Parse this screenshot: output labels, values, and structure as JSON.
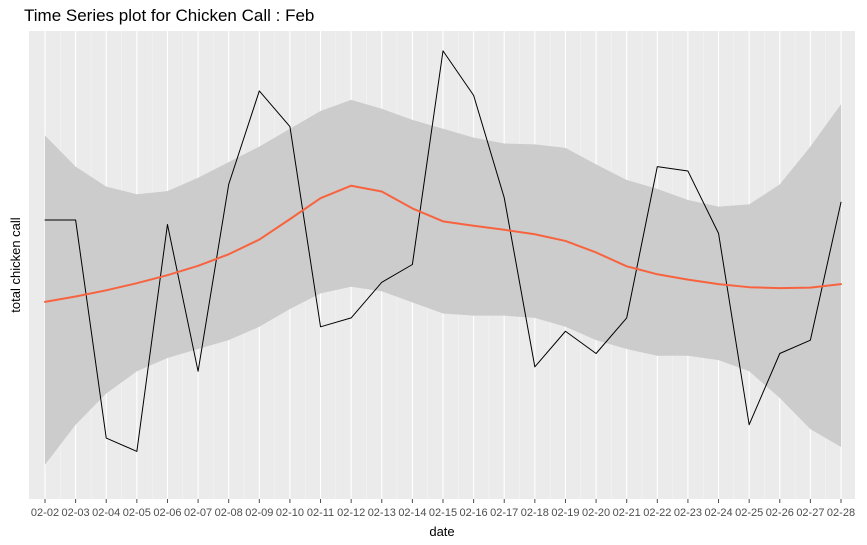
{
  "chart_data": {
    "type": "line",
    "title": "Time Series plot for Chicken Call : Feb",
    "xlabel": "date",
    "ylabel": "total chicken call",
    "categories": [
      "02-02",
      "02-03",
      "02-04",
      "02-05",
      "02-06",
      "02-07",
      "02-08",
      "02-09",
      "02-10",
      "02-11",
      "02-12",
      "02-13",
      "02-14",
      "02-15",
      "02-16",
      "02-17",
      "02-18",
      "02-19",
      "02-20",
      "02-21",
      "02-22",
      "02-23",
      "02-24",
      "02-25",
      "02-26",
      "02-27",
      "02-28"
    ],
    "ylim": [
      0,
      100
    ],
    "y_ticks_shown": false,
    "grid": "vertical",
    "series": [
      {
        "role": "observed",
        "color": "#000000",
        "values": [
          60,
          60,
          11,
          8,
          59,
          26,
          68,
          89,
          81,
          36,
          38,
          46,
          50,
          98,
          88,
          65,
          27,
          35,
          30,
          38,
          72,
          71,
          57,
          14,
          30,
          33,
          64
        ]
      },
      {
        "role": "smooth",
        "color": "#F8633F",
        "values": [
          41.6,
          42.8,
          44.2,
          45.8,
          47.6,
          49.7,
          52.3,
          55.6,
          60.2,
          64.9,
          67.7,
          66.4,
          62.6,
          59.7,
          58.7,
          57.8,
          56.8,
          55.3,
          52.7,
          49.6,
          47.8,
          46.6,
          45.6,
          44.9,
          44.7,
          44.8,
          45.6
        ]
      }
    ],
    "confidence_band": {
      "color": "#cccccc",
      "lower": [
        5,
        14,
        21,
        26,
        29,
        31,
        33,
        36,
        40,
        43.5,
        45,
        44,
        41.5,
        39,
        38.5,
        38.5,
        38,
        36,
        33,
        31,
        29.5,
        29.5,
        28.5,
        26,
        20,
        13,
        9
      ],
      "upper": [
        79,
        72,
        67.5,
        65.8,
        66.5,
        69.5,
        73,
        76.5,
        80.5,
        84.5,
        87,
        85,
        82.5,
        80.5,
        78.5,
        77.2,
        77,
        76.2,
        72.5,
        69,
        67,
        64.5,
        63,
        63.5,
        68,
        76.5,
        86
      ]
    }
  }
}
